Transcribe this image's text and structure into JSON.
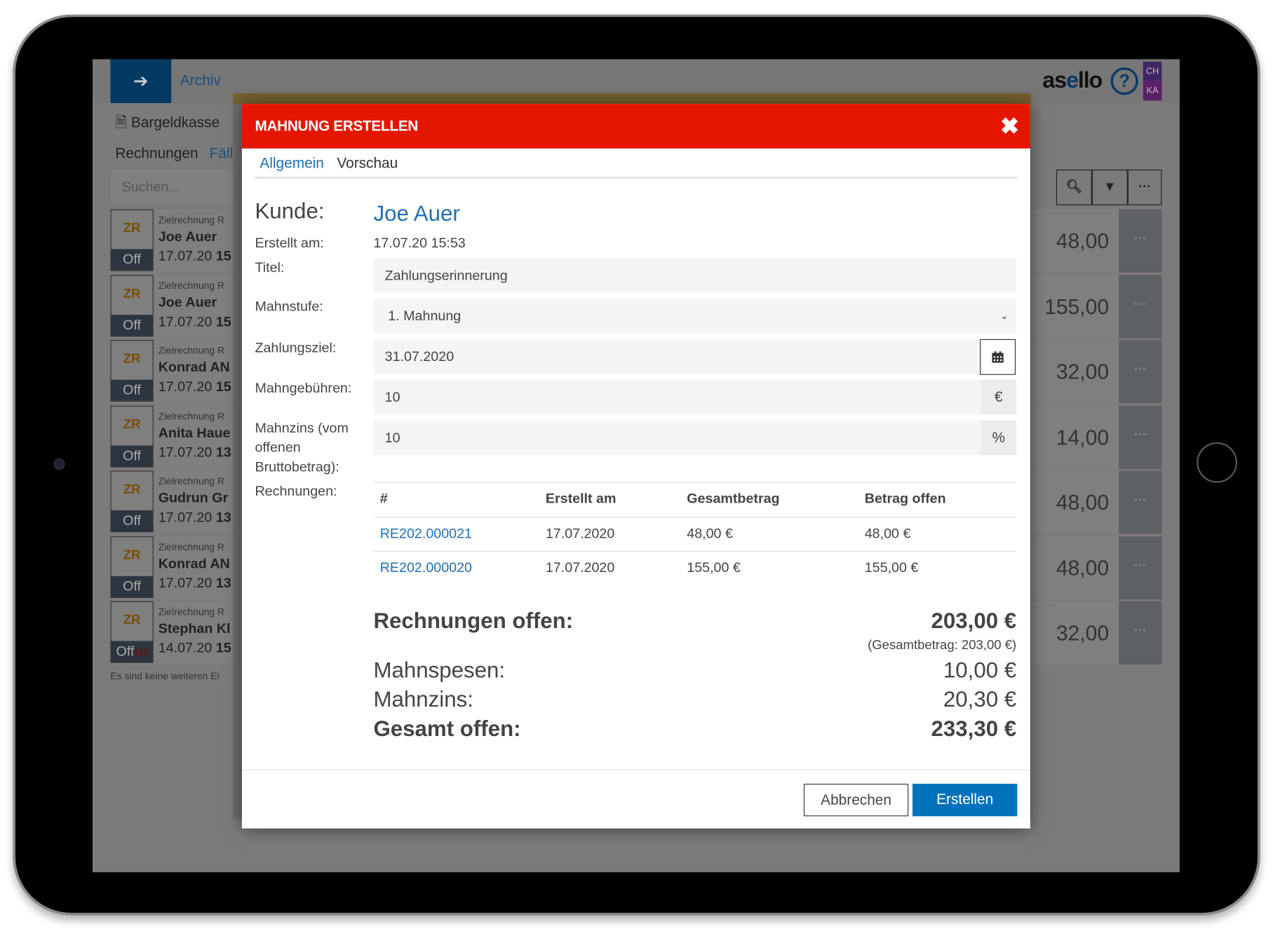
{
  "app": {
    "back_icon": "arrow-left-icon",
    "breadcrumb": "Archiv",
    "logo": "asello",
    "help_icon": "question-circle-icon",
    "user_badges": [
      "CH",
      "KA"
    ],
    "badge_color": "#6a1b9a"
  },
  "background": {
    "register": "Bargeldkasse",
    "tabs": [
      "Rechnungen",
      "Fäll"
    ],
    "search_placeholder": "Suchen...",
    "rows": [
      {
        "badge": "ZR",
        "status": "Off",
        "extra": "",
        "type": "Zielrechnung R",
        "name": "Joe Auer",
        "date": "17.07.20",
        "time": "15",
        "amount": "48,00"
      },
      {
        "badge": "ZR",
        "status": "Off",
        "extra": "",
        "type": "Zielrechnung R",
        "name": "Joe Auer",
        "date": "17.07.20",
        "time": "15",
        "amount": "155,00"
      },
      {
        "badge": "ZR",
        "status": "Off",
        "extra": "",
        "type": "Zielrechnung R",
        "name": "Konrad AN",
        "date": "17.07.20",
        "time": "15",
        "amount": "32,00"
      },
      {
        "badge": "ZR",
        "status": "Off",
        "extra": "",
        "type": "Zielrechnung R",
        "name": "Anita Haue",
        "date": "17.07.20",
        "time": "13",
        "amount": "14,00"
      },
      {
        "badge": "ZR",
        "status": "Off",
        "extra": "",
        "type": "Zielrechnung R",
        "name": "Gudrun Gr",
        "date": "17.07.20",
        "time": "13",
        "amount": "48,00"
      },
      {
        "badge": "ZR",
        "status": "Off",
        "extra": "",
        "type": "Zielrechnung R",
        "name": "Konrad AN",
        "date": "17.07.20",
        "time": "13",
        "amount": "48,00"
      },
      {
        "badge": "ZR",
        "status": "Off",
        "extra": "M3",
        "type": "Zielrechnung R",
        "name": "Stephan Kl",
        "date": "14.07.20",
        "time": "15",
        "amount": "32,00"
      }
    ],
    "empty_note": "Es sind keine weiteren Ei",
    "tools": [
      "search-icon",
      "filter-check-icon",
      "more-icon"
    ]
  },
  "modal": {
    "title": "MAHNUNG ERSTELLEN",
    "header_color": "#e41600",
    "close_icon": "close-icon",
    "tabs": [
      {
        "label": "Allgemein",
        "active": true
      },
      {
        "label": "Vorschau",
        "active": false
      }
    ],
    "kunde_label": "Kunde:",
    "kunde": "Joe Auer",
    "erstellt_label": "Erstellt am:",
    "erstellt": "17.07.20 15:53",
    "titel_label": "Titel:",
    "titel": "Zahlungserinnerung",
    "mahnstufe_label": "Mahnstufe:",
    "mahnstufe": "1. Mahnung",
    "zahlungsziel_label": "Zahlungsziel:",
    "zahlungsziel": "31.07.2020",
    "calendar_icon": "calendar-icon",
    "gebuehren_label": "Mahngebühren:",
    "gebuehren": "10",
    "gebuehren_unit": "€",
    "zins_label": "Mahnzins (vom offenen Bruttobetrag):",
    "zins": "10",
    "zins_unit": "%",
    "rechnungen_label": "Rechnungen:",
    "table": {
      "headers": [
        "#",
        "Erstellt am",
        "Gesamtbetrag",
        "Betrag offen"
      ],
      "rows": [
        [
          "RE202.000021",
          "17.07.2020",
          "48,00 €",
          "48,00 €"
        ],
        [
          "RE202.000020",
          "17.07.2020",
          "155,00 €",
          "155,00 €"
        ]
      ]
    },
    "summary": {
      "offen_label": "Rechnungen offen:",
      "offen": "203,00 €",
      "gesamt_note": "(Gesamtbetrag: 203,00 €)",
      "spesen_label": "Mahnspesen:",
      "spesen": "10,00 €",
      "zins_label": "Mahnzins:",
      "zins": "20,30 €",
      "total_label": "Gesamt offen:",
      "total": "233,30 €"
    },
    "cancel": "Abbrechen",
    "submit": "Erstellen",
    "submit_color": "#0072bc"
  }
}
